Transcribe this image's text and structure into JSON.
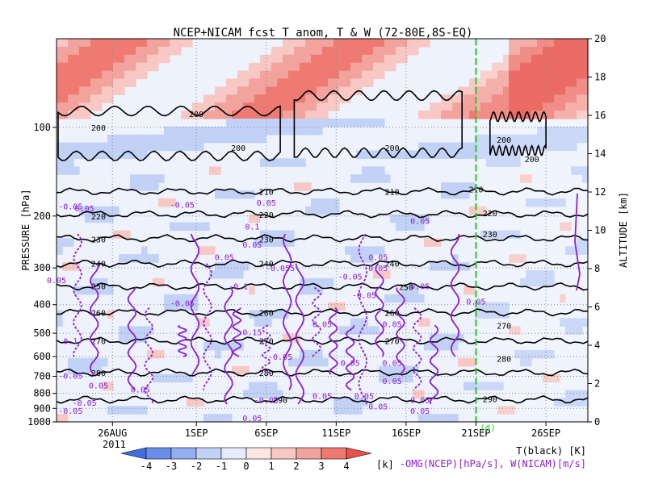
{
  "chart_data": {
    "type": "heatmap",
    "title": "NCEP+NICAM_fcst T_anom, T & W  (72-80E,8S-EQ)",
    "xlabel": "",
    "ylabel": "PRESSURE [hPa]",
    "y2label": "ALTITUDE [km]",
    "x_ticks": [
      "26AUG",
      "1SEP",
      "6SEP",
      "11SEP",
      "16SEP",
      "21SEP",
      "26SEP"
    ],
    "x_year": "2011",
    "x_range": [
      "2011-08-22",
      "2011-09-29"
    ],
    "forecast_start": "2011-09-21",
    "forecast_marker": "(d)",
    "pressure_ticks": [
      100,
      200,
      300,
      400,
      500,
      600,
      700,
      800,
      900,
      1000
    ],
    "pressure_range": [
      1000,
      50
    ],
    "y_scale": "log",
    "altitude_ticks": [
      0,
      2,
      4,
      6,
      8,
      10,
      12,
      14,
      16,
      18,
      20
    ],
    "colorbar": {
      "ticks": [
        -4,
        -3,
        -2,
        -1,
        0,
        1,
        2,
        3,
        4
      ],
      "unit": "[k]",
      "colors": [
        "#3f6fe0",
        "#6a8ee8",
        "#94aff0",
        "#c2d2f7",
        "#e6ecfb",
        "#fbe6e4",
        "#f7c8c4",
        "#f2a39d",
        "#ee7a72",
        "#e8524a"
      ]
    },
    "temperature_contours": {
      "series_name": "T(black) [K]",
      "levels": [
        200,
        210,
        220,
        230,
        240,
        250,
        260,
        270,
        280,
        290
      ],
      "labels": [
        {
          "date": "2011-08-25",
          "level": 100,
          "text": "200"
        },
        {
          "date": "2011-09-01",
          "level": 90,
          "text": "200"
        },
        {
          "date": "2011-09-04",
          "level": 117,
          "text": "200"
        },
        {
          "date": "2011-09-15",
          "level": 117,
          "text": "200"
        },
        {
          "date": "2011-09-23",
          "level": 110,
          "text": "200"
        },
        {
          "date": "2011-09-25",
          "level": 128,
          "text": "200"
        },
        {
          "date": "2011-09-06",
          "level": 165,
          "text": "210"
        },
        {
          "date": "2011-09-15",
          "level": 165,
          "text": "210"
        },
        {
          "date": "2011-09-21",
          "level": 162,
          "text": "210"
        },
        {
          "date": "2011-08-25",
          "level": 200,
          "text": "220"
        },
        {
          "date": "2011-09-06",
          "level": 198,
          "text": "220"
        },
        {
          "date": "2011-09-22",
          "level": 195,
          "text": "220"
        },
        {
          "date": "2011-08-25",
          "level": 240,
          "text": "230"
        },
        {
          "date": "2011-09-06",
          "level": 240,
          "text": "230"
        },
        {
          "date": "2011-09-22",
          "level": 230,
          "text": "230"
        },
        {
          "date": "2011-08-25",
          "level": 290,
          "text": "240"
        },
        {
          "date": "2011-09-06",
          "level": 290,
          "text": "240"
        },
        {
          "date": "2011-09-15",
          "level": 290,
          "text": "240"
        },
        {
          "date": "2011-08-25",
          "level": 345,
          "text": "250"
        },
        {
          "date": "2011-09-16",
          "level": 348,
          "text": "250"
        },
        {
          "date": "2011-08-25",
          "level": 425,
          "text": "260"
        },
        {
          "date": "2011-09-06",
          "level": 425,
          "text": "260"
        },
        {
          "date": "2011-09-15",
          "level": 425,
          "text": "260"
        },
        {
          "date": "2011-08-25",
          "level": 530,
          "text": "270"
        },
        {
          "date": "2011-09-06",
          "level": 530,
          "text": "270"
        },
        {
          "date": "2011-09-15",
          "level": 530,
          "text": "270"
        },
        {
          "date": "2011-09-23",
          "level": 470,
          "text": "270"
        },
        {
          "date": "2011-08-25",
          "level": 680,
          "text": "280"
        },
        {
          "date": "2011-09-06",
          "level": 680,
          "text": "280"
        },
        {
          "date": "2011-09-23",
          "level": 610,
          "text": "280"
        },
        {
          "date": "2011-09-07",
          "level": 840,
          "text": "290"
        },
        {
          "date": "2011-09-22",
          "level": 835,
          "text": "290"
        }
      ]
    },
    "omega_contours": {
      "series_name": "-OMG(NCEP)[hPa/s], W(NICAM)[m/s]",
      "labels": [
        {
          "date": "2011-08-23",
          "level": 185,
          "text": "-0.05"
        },
        {
          "date": "2011-08-24",
          "level": 188,
          "text": "0.05"
        },
        {
          "date": "2011-08-31",
          "level": 183,
          "text": "-0.05"
        },
        {
          "date": "2011-09-06",
          "level": 180,
          "text": "0.05"
        },
        {
          "date": "2011-09-05",
          "level": 217,
          "text": "0.1"
        },
        {
          "date": "2011-09-05",
          "level": 250,
          "text": "0.05"
        },
        {
          "date": "2011-09-03",
          "level": 275,
          "text": "0.05"
        },
        {
          "date": "2011-09-07",
          "level": 300,
          "text": "-0.055"
        },
        {
          "date": "2011-09-14",
          "level": 275,
          "text": "0.05"
        },
        {
          "date": "2011-09-14",
          "level": 300,
          "text": "0.05"
        },
        {
          "date": "2011-09-12",
          "level": 320,
          "text": "-0.05"
        },
        {
          "date": "2011-09-17",
          "level": 207,
          "text": "0.05"
        },
        {
          "date": "2011-08-22",
          "level": 330,
          "text": "0.05"
        },
        {
          "date": "2011-09-04",
          "level": 345,
          "text": "-0.1"
        },
        {
          "date": "2011-09-13",
          "level": 370,
          "text": "-0.05"
        },
        {
          "date": "2011-09-17",
          "level": 345,
          "text": "0.05"
        },
        {
          "date": "2011-08-31",
          "level": 395,
          "text": "-0.05"
        },
        {
          "date": "2011-09-21",
          "level": 390,
          "text": "0.05"
        },
        {
          "date": "2011-09-10",
          "level": 465,
          "text": "0.05"
        },
        {
          "date": "2011-09-15",
          "level": 465,
          "text": "0.05"
        },
        {
          "date": "2011-09-05",
          "level": 495,
          "text": "0.15"
        },
        {
          "date": "2011-08-23",
          "level": 530,
          "text": "0.1"
        },
        {
          "date": "2011-09-07",
          "level": 600,
          "text": "-0.05"
        },
        {
          "date": "2011-09-12",
          "level": 630,
          "text": "0.05"
        },
        {
          "date": "2011-09-15",
          "level": 630,
          "text": "0.05"
        },
        {
          "date": "2011-08-23",
          "level": 695,
          "text": "-0.05"
        },
        {
          "date": "2011-08-25",
          "level": 750,
          "text": "0.05"
        },
        {
          "date": "2011-08-28",
          "level": 775,
          "text": "0.05"
        },
        {
          "date": "2011-09-15",
          "level": 725,
          "text": "0.05"
        },
        {
          "date": "2011-09-10",
          "level": 815,
          "text": "0.05"
        },
        {
          "date": "2011-09-13",
          "level": 815,
          "text": "0.05"
        },
        {
          "date": "2011-09-06",
          "level": 840,
          "text": "-0.05"
        },
        {
          "date": "2011-09-17",
          "level": 840,
          "text": "0.05"
        },
        {
          "date": "2011-08-24",
          "level": 860,
          "text": "-0.05"
        },
        {
          "date": "2011-08-23",
          "level": 915,
          "text": "-0.05"
        },
        {
          "date": "2011-09-14",
          "level": 885,
          "text": "0.05"
        },
        {
          "date": "2011-09-17",
          "level": 915,
          "text": "0.05"
        },
        {
          "date": "2011-09-05",
          "level": 970,
          "text": "0.05"
        }
      ]
    },
    "grid": true
  }
}
